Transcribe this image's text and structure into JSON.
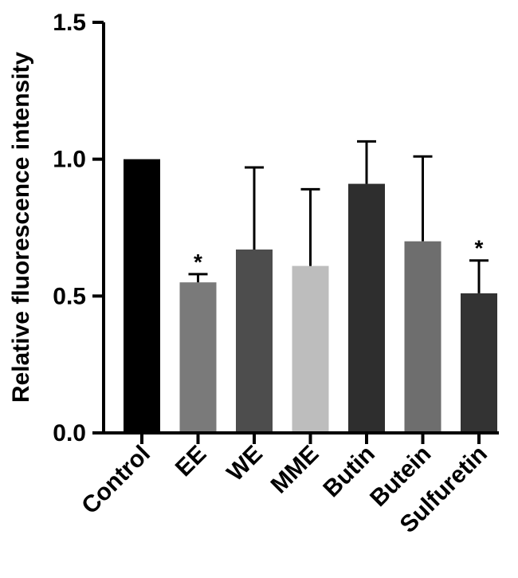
{
  "chart_data": {
    "type": "bar",
    "title": "",
    "xlabel": "",
    "ylabel": "Relative fluorescence intensity",
    "ylim": [
      0,
      1.5
    ],
    "yticks": [
      0.0,
      0.5,
      1.0,
      1.5
    ],
    "ytick_labels": [
      "0.0",
      "0.5",
      "1.0",
      "1.5"
    ],
    "categories": [
      "Control",
      "EE",
      "WE",
      "MME",
      "Butin",
      "Butein",
      "Sulfuretin"
    ],
    "values": [
      1.0,
      0.55,
      0.67,
      0.61,
      0.91,
      0.7,
      0.51
    ],
    "errors": [
      0,
      0.03,
      0.3,
      0.28,
      0.155,
      0.31,
      0.12
    ],
    "significance": [
      "",
      "*",
      "",
      "",
      "",
      "",
      "*"
    ],
    "colors": [
      "#000000",
      "#7a7a7a",
      "#4d4d4d",
      "#bdbdbd",
      "#2e2e2e",
      "#6e6e6e",
      "#333333"
    ],
    "grid": false,
    "legend": "none"
  }
}
